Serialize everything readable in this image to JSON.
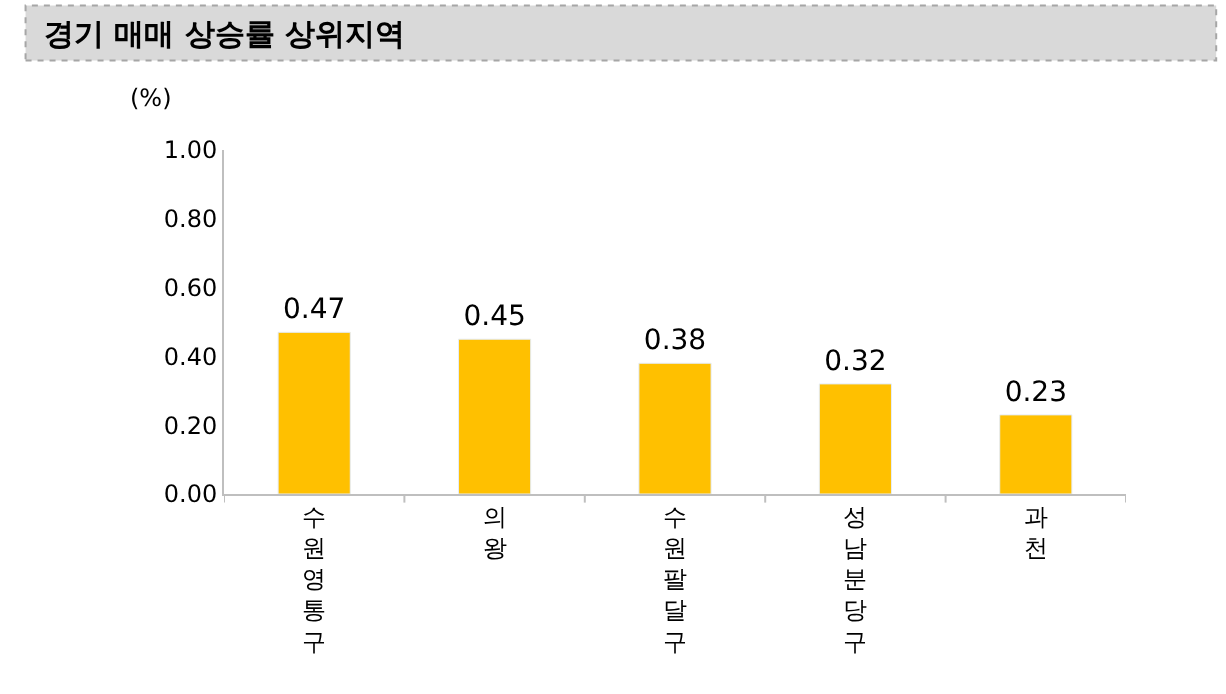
{
  "chart_data": {
    "type": "bar",
    "title": "경기 매매 상승률 상위지역",
    "ylabel": "(%)",
    "categories": [
      "수원영통구",
      "의왕",
      "수원팔달구",
      "성남분당구",
      "과천"
    ],
    "values": [
      0.47,
      0.45,
      0.38,
      0.32,
      0.23
    ],
    "color": "#ffc000",
    "ylim": [
      0,
      1
    ],
    "yticks": [
      {
        "value": 0,
        "label": "0.00"
      },
      {
        "value": 0.2,
        "label": "0.20"
      },
      {
        "value": 0.4,
        "label": "0.40"
      },
      {
        "value": 0.6,
        "label": "0.60"
      },
      {
        "value": 0.8,
        "label": "0.80"
      },
      {
        "value": 1,
        "label": "1.00"
      }
    ],
    "data_labels": true
  }
}
